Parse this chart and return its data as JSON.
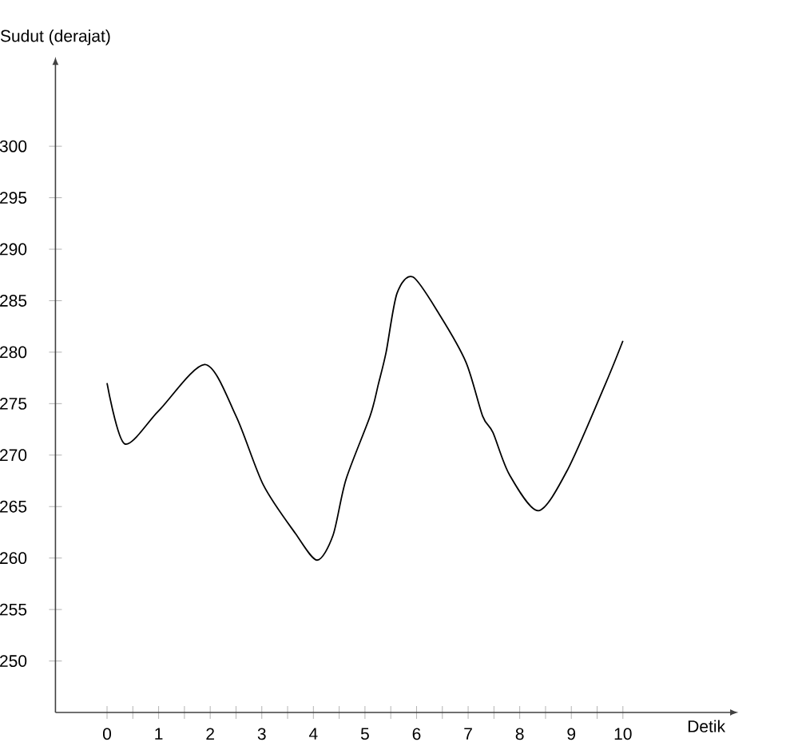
{
  "chart_data": {
    "type": "line",
    "xlabel": "Detik",
    "ylabel": "Sudut (derajat)",
    "xlim": [
      -1,
      12.1
    ],
    "ylim": [
      245,
      308
    ],
    "xticks": [
      0,
      {
        "value": 0.5,
        "label": null
      },
      1,
      {
        "value": 1.5,
        "label": null
      },
      2,
      {
        "value": 2.5,
        "label": null
      },
      3,
      {
        "value": 3.5,
        "label": null
      },
      4,
      {
        "value": 4.5,
        "label": null
      },
      5,
      {
        "value": 5.5,
        "label": null
      },
      6,
      {
        "value": 6.5,
        "label": null
      },
      7,
      {
        "value": 7.5,
        "label": null
      },
      8,
      {
        "value": 8.5,
        "label": null
      },
      9,
      {
        "value": 9.5,
        "label": null
      },
      10
    ],
    "yticks": [
      250,
      255,
      260,
      265,
      270,
      275,
      280,
      285,
      290,
      295,
      300
    ],
    "grid": false,
    "marker": "none",
    "line_style": "solid",
    "series": [
      {
        "color": "#000000",
        "x": [
          0,
          0.34,
          1.0,
          1.9,
          2.5,
          3.03,
          3.65,
          4.07,
          4.38,
          4.63,
          5.1,
          5.26,
          5.41,
          5.62,
          5.93,
          6.45,
          6.96,
          7.28,
          7.48,
          7.8,
          8.36,
          8.93,
          9.66,
          10
        ],
        "values": [
          277,
          271.1,
          274.3,
          278.8,
          273.8,
          267.1,
          262.4,
          259.8,
          262.2,
          267.6,
          273.8,
          276.9,
          280,
          285.7,
          287.3,
          283.6,
          279,
          273.8,
          272.2,
          268.1,
          264.6,
          268.6,
          276.9,
          281.1
        ]
      }
    ]
  }
}
